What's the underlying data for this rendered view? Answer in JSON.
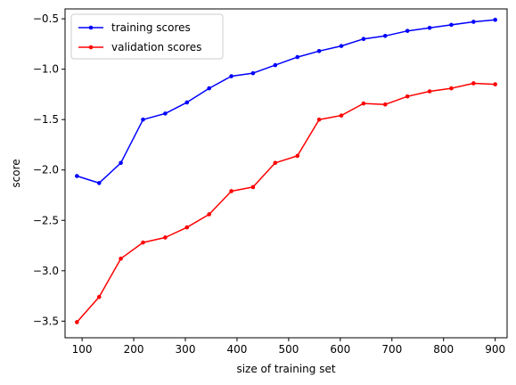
{
  "chart_data": {
    "type": "line",
    "title": "",
    "xlabel": "size of training set",
    "ylabel": "score",
    "xlim": [
      67,
      923
    ],
    "ylim": [
      -3.665,
      -0.402
    ],
    "xticks": [
      100,
      200,
      300,
      400,
      500,
      600,
      700,
      800,
      900
    ],
    "yticks": [
      -3.5,
      -3.0,
      -2.5,
      -2.0,
      -1.5,
      -1.0,
      -0.5
    ],
    "xtick_labels": [
      "100",
      "200",
      "300",
      "400",
      "500",
      "600",
      "700",
      "800",
      "900"
    ],
    "ytick_labels": [
      "−3.5",
      "−3.0",
      "−2.5",
      "−2.0",
      "−1.5",
      "−1.0",
      "−0.5"
    ],
    "grid": false,
    "legend_position": "top-left",
    "x": [
      90,
      133,
      175,
      218,
      261,
      303,
      346,
      389,
      431,
      474,
      517,
      559,
      602,
      645,
      687,
      730,
      773,
      815,
      858,
      900
    ],
    "series": [
      {
        "name": "training scores",
        "color": "#0000ff",
        "marker": "dot",
        "values": [
          -2.06,
          -2.13,
          -1.93,
          -1.5,
          -1.44,
          -1.33,
          -1.19,
          -1.07,
          -1.04,
          -0.96,
          -0.88,
          -0.82,
          -0.77,
          -0.7,
          -0.67,
          -0.62,
          -0.59,
          -0.56,
          -0.53,
          -0.51
        ]
      },
      {
        "name": "validation scores",
        "color": "#ff0000",
        "marker": "dot",
        "values": [
          -3.51,
          -3.26,
          -2.88,
          -2.72,
          -2.67,
          -2.57,
          -2.44,
          -2.21,
          -2.17,
          -1.93,
          -1.86,
          -1.5,
          -1.46,
          -1.34,
          -1.35,
          -1.27,
          -1.22,
          -1.19,
          -1.14,
          -1.15
        ]
      }
    ]
  }
}
